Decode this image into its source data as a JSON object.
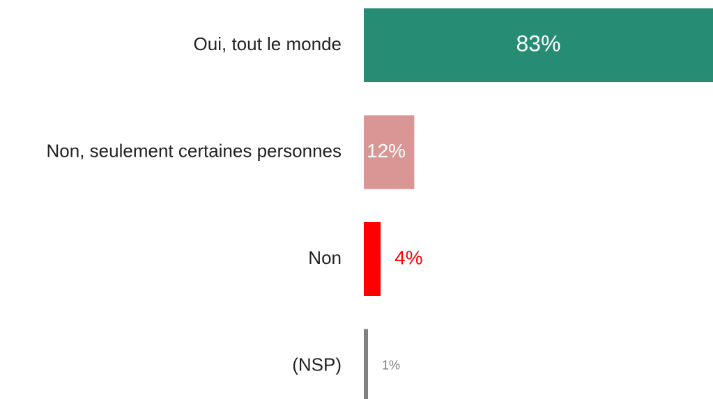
{
  "chart_data": {
    "type": "barh",
    "categories": [
      "Oui, tout le monde",
      "Non, seulement certaines personnes",
      "Non",
      "(NSP)"
    ],
    "values": [
      83,
      12,
      4,
      1
    ],
    "value_labels": [
      "83%",
      "12%",
      "4%",
      "1%"
    ],
    "colors": [
      "#268c73",
      "#d99694",
      "#ff0000",
      "#808080"
    ]
  }
}
